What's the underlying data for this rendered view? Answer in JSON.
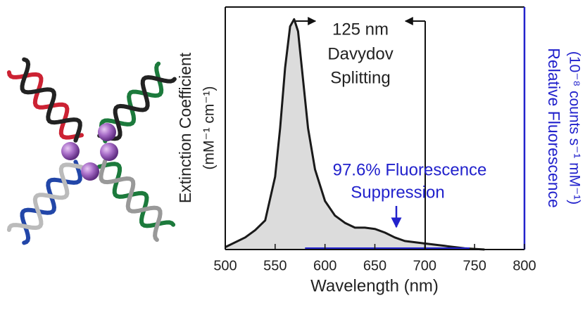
{
  "chart_data": {
    "type": "line",
    "x_label": "Wavelength (nm)",
    "y_label": [
      "Extinction Coefficient",
      "(mM⁻¹ cm⁻¹)"
    ],
    "y2_label": [
      "Relative Fluorescence",
      "(10⁻⁸ counts s⁻¹ mM⁻¹)"
    ],
    "annotations": [
      "125 nm",
      "Davydov",
      "Splitting",
      "97.6% Fluorescence",
      "Suppression"
    ],
    "xlim": [
      500,
      800
    ],
    "xticks": [
      500,
      550,
      600,
      650,
      700,
      750,
      800
    ],
    "ylim": [
      0,
      1
    ],
    "series": [
      {
        "color": "#1a1a1a",
        "fill": "#dcdcdc",
        "x": [
          500,
          520,
          530,
          540,
          550,
          555,
          560,
          565,
          569,
          573,
          578,
          583,
          590,
          600,
          610,
          620,
          630,
          640,
          650,
          660,
          670,
          680,
          700,
          720,
          740,
          760
        ],
        "values": [
          0.01,
          0.05,
          0.08,
          0.12,
          0.3,
          0.5,
          0.75,
          0.92,
          0.95,
          0.9,
          0.7,
          0.5,
          0.33,
          0.2,
          0.14,
          0.11,
          0.09,
          0.09,
          0.085,
          0.07,
          0.05,
          0.035,
          0.025,
          0.015,
          0.005,
          0
        ]
      },
      {
        "color": "#2222cc",
        "axis": "y2",
        "x": [
          580,
          650,
          700,
          745
        ],
        "values": [
          0.003,
          0.003,
          0.003,
          0.003
        ]
      }
    ]
  }
}
